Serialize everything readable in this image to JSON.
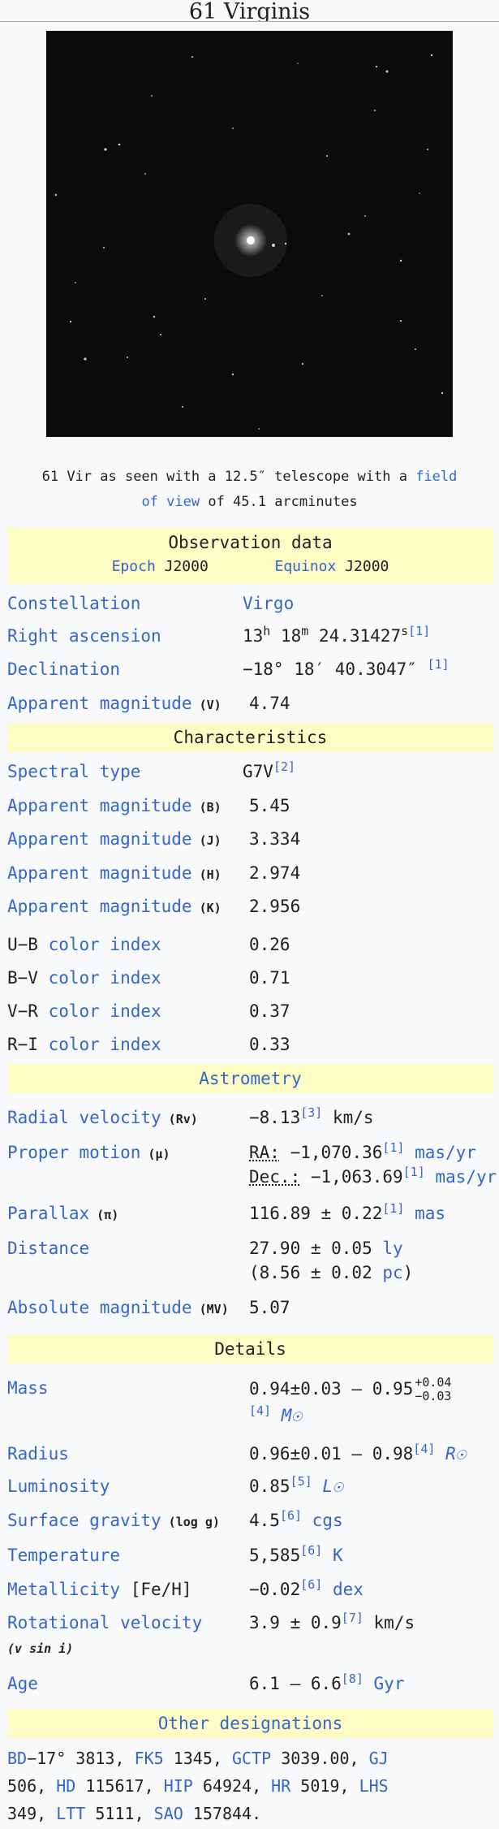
{
  "page": {
    "title": "61 Virginis"
  },
  "image": {
    "caption_pre": "61 Vir as seen with a 12.5″ telescope with a ",
    "caption_link": "field of view",
    "caption_post": " of 45.1 arcminutes"
  },
  "observation": {
    "heading": "Observation data",
    "epoch_label": "Epoch",
    "epoch_value": "J2000",
    "equinox_label": "Equinox",
    "equinox_value": "J2000",
    "constellation_label": "Constellation",
    "constellation_value": "Virgo",
    "ra_label": "Right ascension",
    "ra_h": "13",
    "ra_h_unit": "h",
    "ra_m": " 18",
    "ra_m_unit": "m",
    "ra_s": " 24.31427",
    "ra_s_unit": "s",
    "ra_ref": "[1]",
    "dec_label": "Declination",
    "dec_value": "−18°  18′  40.3047″ ",
    "dec_ref": "[1]",
    "appmag_label": "Apparent magnitude",
    "appmag_band": " (V)",
    "appmag_value": "4.74"
  },
  "characteristics": {
    "heading": "Characteristics",
    "spectral_label": "Spectral type",
    "spectral_value": "G7V",
    "spectral_ref": "[2]",
    "mag_label": "Apparent magnitude",
    "mag_b_band": " (B)",
    "mag_b_value": "5.45",
    "mag_j_band": " (J)",
    "mag_j_value": "3.334",
    "mag_h_band": " (H)",
    "mag_h_value": "2.974",
    "mag_k_band": " (K)",
    "mag_k_value": "2.956",
    "ub_prefix": "U−B ",
    "ub_value": "0.26",
    "bv_prefix": "B−V ",
    "bv_value": "0.71",
    "vr_prefix": "V−R ",
    "vr_value": "0.37",
    "ri_prefix": "R−I ",
    "ri_value": "0.33",
    "color_index_label": "color index"
  },
  "astrometry": {
    "heading": "Astrometry",
    "rv_label": "Radial velocity",
    "rv_sym": " (Rv)",
    "rv_value": "−8.13",
    "rv_ref": "[3]",
    "rv_unit": " km/s",
    "pm_label": "Proper motion",
    "pm_sym": " (μ)",
    "pm_ra_label": "RA:",
    "pm_ra_value": " −1,070.36",
    "pm_ra_ref": "[1]",
    "pm_unit": " mas/yr",
    "pm_dec_label": "Dec.:",
    "pm_dec_value": " −1,063.69",
    "pm_dec_ref": "[1]",
    "plx_label": "Parallax",
    "plx_sym": " (π)",
    "plx_value": "116.89 ± 0.22",
    "plx_ref": "[1]",
    "plx_unit": " mas",
    "dist_label": "Distance",
    "dist_ly_value": "27.90 ± 0.05 ",
    "dist_ly_unit": "ly",
    "dist_pc_value": "(8.56 ± 0.02 ",
    "dist_pc_unit": "pc",
    "dist_pc_close": ")",
    "absmag_label": "Absolute magnitude",
    "absmag_sym": " (MV)",
    "absmag_value": "5.07"
  },
  "details": {
    "heading": "Details",
    "mass_label": "Mass",
    "mass_value": "0.94±0.03 – 0.95",
    "mass_sup": "+0.04",
    "mass_sub": "−0.03",
    "mass_ref": "[4]",
    "mass_unit": " M☉",
    "radius_label": "Radius",
    "radius_value": "0.96±0.01 – 0.98",
    "radius_ref": "[4]",
    "radius_unit": " R☉",
    "lum_label": "Luminosity",
    "lum_value": "0.85",
    "lum_ref": "[5]",
    "lum_unit": " L☉",
    "grav_label": "Surface gravity",
    "grav_sym": " (log g)",
    "grav_value": "4.5",
    "grav_ref": "[6]",
    "grav_unit": " cgs",
    "temp_label": "Temperature",
    "temp_value": "5,585",
    "temp_ref": "[6]",
    "temp_unit": " K",
    "met_label": "Metallicity",
    "met_sym": " [Fe/H]",
    "met_value": "−0.02",
    "met_ref": "[6]",
    "met_unit": " dex",
    "rot_label": "Rotational velocity",
    "rot_sym": "(v sin i)",
    "rot_value": "3.9 ± 0.9",
    "rot_ref": "[7]",
    "rot_unit": " km/s",
    "age_label": "Age",
    "age_value": "6.1 – 6.6",
    "age_ref": "[8]",
    "age_unit": " Gyr"
  },
  "designations": {
    "heading": "Other designations",
    "items": [
      {
        "cat": "BD",
        "num": "−17° 3813"
      },
      {
        "cat": "FK5",
        "num": " 1345"
      },
      {
        "cat": "GCTP",
        "num": " 3039.00"
      },
      {
        "cat": "GJ",
        "num": " 506"
      },
      {
        "cat": "HD",
        "num": " 115617"
      },
      {
        "cat": "HIP",
        "num": " 64924"
      },
      {
        "cat": "HR",
        "num": " 5019"
      },
      {
        "cat": "LHS",
        "num": " 349"
      },
      {
        "cat": "LTT",
        "num": " 5111"
      },
      {
        "cat": "SAO",
        "num": " 157844"
      }
    ],
    "end": "."
  },
  "colors": {
    "link": "#3366cc",
    "section_bg": "#fefcc4",
    "text": "#202122"
  }
}
